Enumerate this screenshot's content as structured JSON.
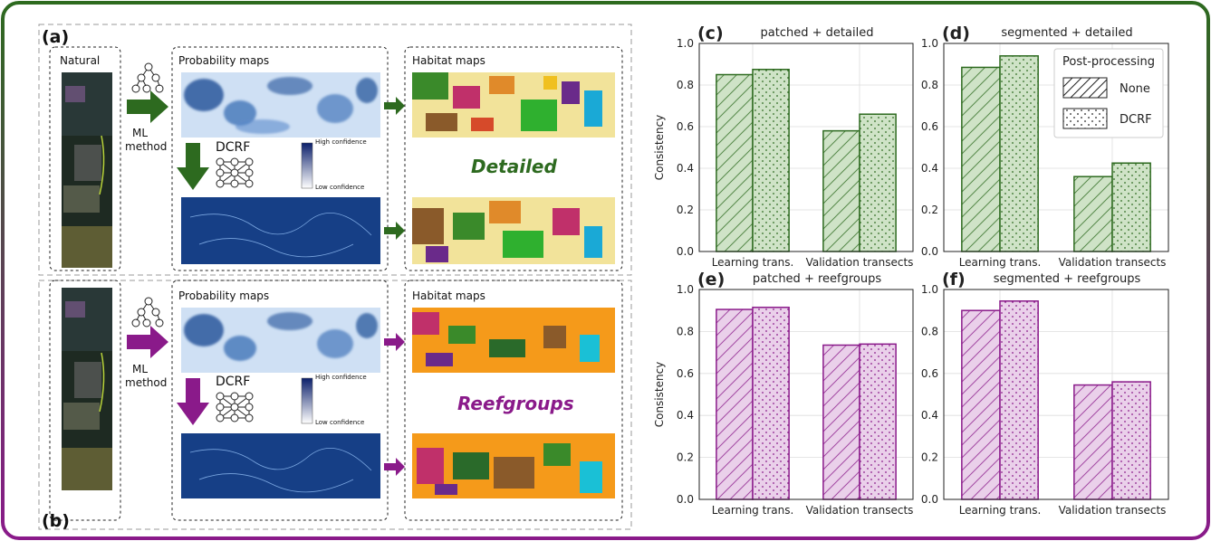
{
  "colors": {
    "green": "#2d6a1f",
    "green_fill": "#cfe3c7",
    "purple": "#8a1a8a",
    "purple_fill": "#ead0ea",
    "prob_blue": "#1f4f97",
    "prob_light": "#cfe0f4"
  },
  "diagram": {
    "panel_a": {
      "letter": "(a)",
      "natural_label": "Natural",
      "ml_label_1": "ML",
      "ml_label_2": "method",
      "prob_title": "Probability maps",
      "habitat_title": "Habitat maps",
      "dcrf_label": "DCRF",
      "high_conf": "High confidence",
      "low_conf": "Low confidence",
      "result_label": "Detailed"
    },
    "panel_b": {
      "letter": "(b)",
      "ml_label_1": "ML",
      "ml_label_2": "method",
      "prob_title": "Probability maps",
      "habitat_title": "Habitat maps",
      "dcrf_label": "DCRF",
      "high_conf": "High confidence",
      "low_conf": "Low confidence",
      "result_label": "Reefgroups"
    }
  },
  "chart_data": [
    {
      "type": "bar",
      "panel": "(c)",
      "title": "patched + detailed",
      "ylabel": "Consistency",
      "categories": [
        "Learning trans.",
        "Validation transects"
      ],
      "series": [
        {
          "name": "None",
          "values": [
            0.85,
            0.58
          ]
        },
        {
          "name": "DCRF",
          "values": [
            0.875,
            0.66
          ]
        }
      ],
      "ylim": [
        0,
        1.0
      ],
      "yticks": [
        "0.0",
        "0.2",
        "0.4",
        "0.6",
        "0.8",
        "1.0"
      ],
      "color": "green",
      "grid": true
    },
    {
      "type": "bar",
      "panel": "(d)",
      "title": "segmented + detailed",
      "ylabel": "",
      "categories": [
        "Learning trans.",
        "Validation transects"
      ],
      "series": [
        {
          "name": "None",
          "values": [
            0.885,
            0.36
          ]
        },
        {
          "name": "DCRF",
          "values": [
            0.94,
            0.425
          ]
        }
      ],
      "ylim": [
        0,
        1.0
      ],
      "yticks": [
        "0.0",
        "0.2",
        "0.4",
        "0.6",
        "0.8",
        "1.0"
      ],
      "color": "green",
      "grid": true,
      "legend": {
        "title": "Post-processing",
        "entries": [
          "None",
          "DCRF"
        ],
        "placement": "top-right"
      }
    },
    {
      "type": "bar",
      "panel": "(e)",
      "title": "patched + reefgroups",
      "ylabel": "Consistency",
      "categories": [
        "Learning trans.",
        "Validation transects"
      ],
      "series": [
        {
          "name": "None",
          "values": [
            0.905,
            0.735
          ]
        },
        {
          "name": "DCRF",
          "values": [
            0.915,
            0.74
          ]
        }
      ],
      "ylim": [
        0,
        1.0
      ],
      "yticks": [
        "0.0",
        "0.2",
        "0.4",
        "0.6",
        "0.8",
        "1.0"
      ],
      "color": "purple",
      "grid": true
    },
    {
      "type": "bar",
      "panel": "(f)",
      "title": "segmented + reefgroups",
      "ylabel": "",
      "categories": [
        "Learning trans.",
        "Validation transects"
      ],
      "series": [
        {
          "name": "None",
          "values": [
            0.9,
            0.545
          ]
        },
        {
          "name": "DCRF",
          "values": [
            0.945,
            0.56
          ]
        }
      ],
      "ylim": [
        0,
        1.0
      ],
      "yticks": [
        "0.0",
        "0.2",
        "0.4",
        "0.6",
        "0.8",
        "1.0"
      ],
      "color": "purple",
      "grid": true
    }
  ]
}
